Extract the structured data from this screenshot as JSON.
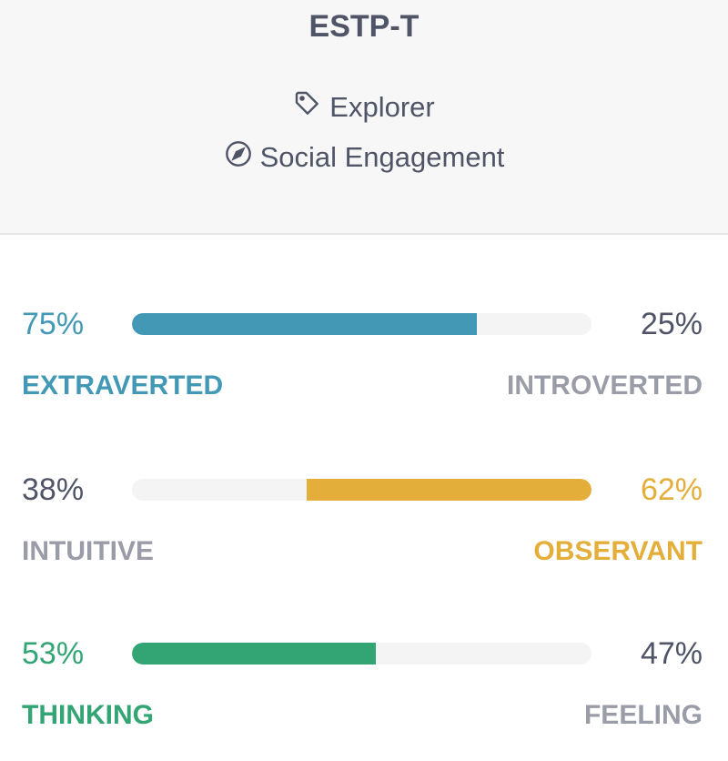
{
  "header": {
    "type_code": "ESTP-T",
    "role": {
      "icon": "tag-icon",
      "label": "Explorer"
    },
    "strategy": {
      "icon": "compass-icon",
      "label": "Social Engagement"
    }
  },
  "colors": {
    "blue": "#4298b5",
    "yellow": "#e4ae3a",
    "green": "#33a474",
    "dark": "#4f5467",
    "muted": "#9a9ca8"
  },
  "traits": [
    {
      "left_pct": "75%",
      "right_pct": "25%",
      "left_label": "EXTRAVERTED",
      "right_label": "INTROVERTED",
      "value": 75,
      "dominant": "left",
      "color": "#4298b5"
    },
    {
      "left_pct": "38%",
      "right_pct": "62%",
      "left_label": "INTUITIVE",
      "right_label": "OBSERVANT",
      "value": 62,
      "dominant": "right",
      "color": "#e4ae3a"
    },
    {
      "left_pct": "53%",
      "right_pct": "47%",
      "left_label": "THINKING",
      "right_label": "FEELING",
      "value": 53,
      "dominant": "left",
      "color": "#33a474"
    }
  ]
}
